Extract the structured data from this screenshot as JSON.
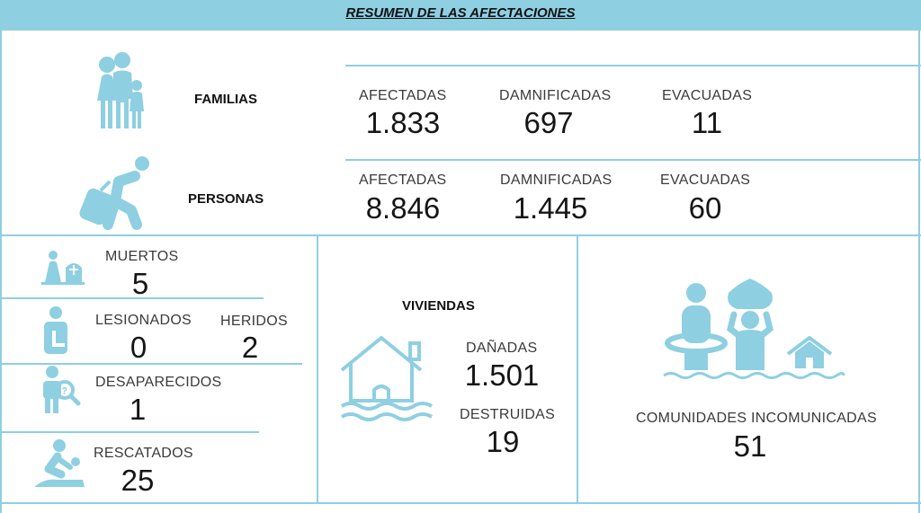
{
  "header": {
    "title": "RESUMEN DE LAS AFECTACIONES"
  },
  "familias": {
    "label": "FAMILIAS",
    "afectadas": {
      "label": "AFECTADAS",
      "value": "1.833"
    },
    "damnificadas": {
      "label": "DAMNIFICADAS",
      "value": "697"
    },
    "evacuadas": {
      "label": "EVACUADAS",
      "value": "11"
    }
  },
  "personas": {
    "label": "PERSONAS",
    "afectadas": {
      "label": "AFECTADAS",
      "value": "8.846"
    },
    "damnificadas": {
      "label": "DAMNIFICADAS",
      "value": "1.445"
    },
    "evacuadas": {
      "label": "EVACUADAS",
      "value": "60"
    }
  },
  "muertos": {
    "label": "MUERTOS",
    "value": "5"
  },
  "lesionados": {
    "label": "LESIONADOS",
    "value": "0"
  },
  "heridos": {
    "label": "HERIDOS",
    "value": "2"
  },
  "desaparecidos": {
    "label": "DESAPARECIDOS",
    "value": "1"
  },
  "rescatados": {
    "label": "RESCATADOS",
    "value": "25"
  },
  "viviendas": {
    "label": "VIVIENDAS",
    "danadas": {
      "label": "DAÑADAS",
      "value": "1.501"
    },
    "destruidas": {
      "label": "DESTRUIDAS",
      "value": "19"
    }
  },
  "comunidades": {
    "label": "COMUNIDADES INCOMUNICADAS",
    "value": "51"
  },
  "icons": [
    "family-icon",
    "traveler-icon",
    "grave-icon",
    "injured-icon",
    "missing-person-icon",
    "rescue-icon",
    "flooded-house-icon",
    "flood-community-icon"
  ],
  "colors": {
    "accent": "#8ecfe2",
    "text": "#151515"
  }
}
